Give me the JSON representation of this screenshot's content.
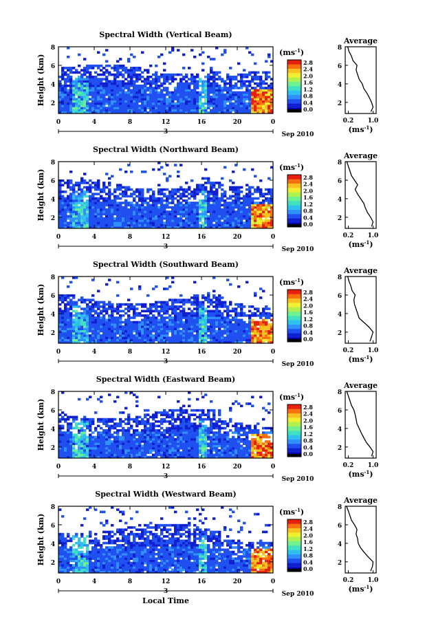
{
  "figure": {
    "xlabel": "Local Time",
    "colorbar_unit": "(ms",
    "colorbar_unit_exp": "-1",
    "colorbar_unit_end": ")",
    "date_label": "Sep 2010",
    "day_label": "3",
    "avg_title": "Average",
    "avg_xunit": "(ms",
    "avg_xunit_exp": "-1",
    "avg_xunit_end": ")"
  },
  "colors": {
    "colormap": [
      "#0000a0",
      "#1020d0",
      "#2050f0",
      "#3090ff",
      "#30c0f0",
      "#40e0c0",
      "#70f090",
      "#b0f050",
      "#f0f030",
      "#f8c020",
      "#f87010",
      "#e82010"
    ]
  },
  "chart_data": [
    {
      "type": "heatmap",
      "title": "Spectral Width (Vertical Beam)",
      "ylabel": "Height (km)",
      "xticks": [
        "0",
        "4",
        "8",
        "12",
        "16",
        "20",
        "0"
      ],
      "yticks": [
        "2",
        "4",
        "6",
        "8"
      ],
      "xlim": [
        0,
        24
      ],
      "ylim": [
        0.8,
        8
      ],
      "colorbar_ticks": [
        "0.0",
        "0.4",
        "0.8",
        "1.2",
        "1.6",
        "2.0",
        "2.4",
        "2.8"
      ],
      "colorbar_range": [
        0,
        2.8
      ],
      "average": {
        "xticks": [
          "0.2",
          "1.0"
        ],
        "yticks": [
          "2",
          "4",
          "6",
          "8"
        ],
        "xlim": [
          0.1,
          1.1
        ],
        "ylim": [
          0.8,
          8
        ],
        "height": [
          1.0,
          1.5,
          2.0,
          2.5,
          3.0,
          3.5,
          4.0,
          4.5,
          5.0,
          5.5,
          6.0,
          6.5,
          7.0,
          7.5,
          8.0
        ],
        "width": [
          0.93,
          1.0,
          0.95,
          0.88,
          0.8,
          0.7,
          0.65,
          0.55,
          0.5,
          0.45,
          0.48,
          0.35,
          0.3,
          0.22,
          0.18
        ]
      }
    },
    {
      "type": "heatmap",
      "title": "Spectral Width (Northward Beam)",
      "ylabel": "Height (km)",
      "xticks": [
        "0",
        "4",
        "8",
        "12",
        "16",
        "20",
        "0"
      ],
      "yticks": [
        "2",
        "4",
        "6",
        "8"
      ],
      "xlim": [
        0,
        24
      ],
      "ylim": [
        0.8,
        8
      ],
      "colorbar_ticks": [
        "0.0",
        "0.4",
        "0.8",
        "1.2",
        "1.6",
        "2.0",
        "2.4",
        "2.8"
      ],
      "colorbar_range": [
        0,
        2.8
      ],
      "average": {
        "xticks": [
          "0.2",
          "1.0"
        ],
        "yticks": [
          "2",
          "4",
          "6",
          "8"
        ],
        "xlim": [
          0.1,
          1.1
        ],
        "ylim": [
          0.8,
          8
        ],
        "height": [
          1.0,
          1.5,
          2.0,
          2.5,
          3.0,
          3.5,
          4.0,
          4.5,
          5.0,
          5.5,
          6.0,
          6.5,
          7.0,
          7.5,
          8.0
        ],
        "width": [
          0.95,
          1.0,
          0.92,
          0.82,
          0.75,
          0.7,
          0.6,
          0.5,
          0.42,
          0.5,
          0.4,
          0.3,
          0.25,
          0.2,
          0.15
        ]
      }
    },
    {
      "type": "heatmap",
      "title": "Spectral Width (Southward Beam)",
      "ylabel": "Height (km)",
      "xticks": [
        "0",
        "4",
        "8",
        "12",
        "16",
        "20",
        "0"
      ],
      "yticks": [
        "2",
        "4",
        "6",
        "8"
      ],
      "xlim": [
        0,
        24
      ],
      "ylim": [
        0.8,
        8
      ],
      "colorbar_ticks": [
        "0.0",
        "0.4",
        "0.8",
        "1.2",
        "1.6",
        "2.0",
        "2.4",
        "2.8"
      ],
      "colorbar_range": [
        0,
        2.8
      ],
      "average": {
        "xticks": [
          "0.2",
          "1.0"
        ],
        "yticks": [
          "2",
          "4",
          "6",
          "8"
        ],
        "xlim": [
          0.1,
          1.1
        ],
        "ylim": [
          0.8,
          8
        ],
        "height": [
          1.0,
          1.5,
          2.0,
          2.5,
          3.0,
          3.5,
          4.0,
          4.5,
          5.0,
          5.5,
          6.0,
          6.5,
          7.0,
          7.5,
          8.0
        ],
        "width": [
          0.9,
          0.95,
          1.0,
          0.88,
          0.72,
          0.55,
          0.5,
          0.45,
          0.4,
          0.38,
          0.42,
          0.32,
          0.28,
          0.22,
          0.18
        ]
      }
    },
    {
      "type": "heatmap",
      "title": "Spectral Width (Eastward Beam)",
      "ylabel": "Height (km)",
      "xticks": [
        "0",
        "4",
        "8",
        "12",
        "16",
        "20",
        "0"
      ],
      "yticks": [
        "2",
        "4",
        "6",
        "8"
      ],
      "xlim": [
        0,
        24
      ],
      "ylim": [
        0.8,
        8
      ],
      "colorbar_ticks": [
        "0.0",
        "0.4",
        "0.8",
        "1.2",
        "1.6",
        "2.0",
        "2.4",
        "2.8"
      ],
      "colorbar_range": [
        0,
        2.8
      ],
      "average": {
        "xticks": [
          "0.2",
          "1.0"
        ],
        "yticks": [
          "2",
          "4",
          "6",
          "8"
        ],
        "xlim": [
          0.1,
          1.1
        ],
        "ylim": [
          0.8,
          8
        ],
        "height": [
          1.0,
          1.5,
          2.0,
          2.5,
          3.0,
          3.5,
          4.0,
          4.5,
          5.0,
          5.5,
          6.0,
          6.5,
          7.0,
          7.5,
          8.0
        ],
        "width": [
          0.95,
          1.0,
          0.9,
          0.78,
          0.7,
          0.62,
          0.55,
          0.48,
          0.45,
          0.42,
          0.38,
          0.3,
          0.25,
          0.2,
          0.15
        ]
      }
    },
    {
      "type": "heatmap",
      "title": "Spectral Width (Westward Beam)",
      "ylabel": "Height (km)",
      "xticks": [
        "0",
        "4",
        "8",
        "12",
        "16",
        "20",
        "0"
      ],
      "yticks": [
        "2",
        "4",
        "6",
        "8"
      ],
      "xlim": [
        0,
        24
      ],
      "ylim": [
        0.8,
        8
      ],
      "colorbar_ticks": [
        "0.0",
        "0.4",
        "0.8",
        "1.2",
        "1.6",
        "2.0",
        "2.4",
        "2.8"
      ],
      "colorbar_range": [
        0,
        2.8
      ],
      "average": {
        "xticks": [
          "0.2",
          "1.0"
        ],
        "yticks": [
          "2",
          "4",
          "6",
          "8"
        ],
        "xlim": [
          0.1,
          1.1
        ],
        "ylim": [
          0.8,
          8
        ],
        "height": [
          1.0,
          1.5,
          2.0,
          2.5,
          3.0,
          3.5,
          4.0,
          4.5,
          5.0,
          5.5,
          6.0,
          6.5,
          7.0,
          7.5,
          8.0
        ],
        "width": [
          0.92,
          0.98,
          1.0,
          0.85,
          0.72,
          0.6,
          0.52,
          0.5,
          0.45,
          0.48,
          0.4,
          0.3,
          0.25,
          0.2,
          0.14
        ]
      }
    }
  ]
}
